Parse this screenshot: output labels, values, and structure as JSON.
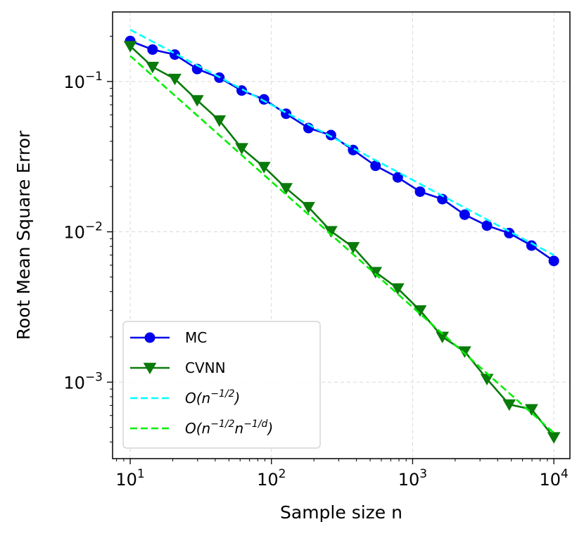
{
  "chart_data": {
    "type": "line",
    "title": "",
    "xlabel": "Sample size n",
    "ylabel": "Root Mean Square Error",
    "xscale": "log",
    "yscale": "log",
    "xlim": [
      7.5,
      13000
    ],
    "ylim": [
      0.00031,
      0.29
    ],
    "grid": true,
    "legend_position": "lower-left",
    "x_ticks": [
      {
        "value": 10,
        "base": "10",
        "exp": "1"
      },
      {
        "value": 100,
        "base": "10",
        "exp": "2"
      },
      {
        "value": 1000,
        "base": "10",
        "exp": "3"
      },
      {
        "value": 10000,
        "base": "10",
        "exp": "4"
      }
    ],
    "y_ticks": [
      {
        "value": 0.001,
        "base": "10",
        "exp": "−3"
      },
      {
        "value": 0.01,
        "base": "10",
        "exp": "−2"
      },
      {
        "value": 0.1,
        "base": "10",
        "exp": "−1"
      }
    ],
    "series": [
      {
        "name": "MC",
        "color": "#0000ee",
        "marker": "circle",
        "style": "solid",
        "x": [
          10,
          14.4,
          20.7,
          29.8,
          42.8,
          61.6,
          88.6,
          127,
          183,
          264,
          379,
          546,
          785,
          1129,
          1624,
          2336,
          3360,
          4833,
          6952,
          10000
        ],
        "y": [
          0.186,
          0.163,
          0.151,
          0.121,
          0.106,
          0.087,
          0.076,
          0.061,
          0.049,
          0.044,
          0.035,
          0.0275,
          0.023,
          0.0185,
          0.0165,
          0.013,
          0.011,
          0.0098,
          0.0081,
          0.0064
        ]
      },
      {
        "name": "CVNN",
        "color": "#0a7a0a",
        "marker": "triangle-down",
        "style": "solid",
        "x": [
          10,
          14.4,
          20.7,
          29.8,
          42.8,
          61.6,
          88.6,
          127,
          183,
          264,
          379,
          546,
          785,
          1129,
          1624,
          2336,
          3360,
          4833,
          6952,
          10000
        ],
        "y": [
          0.172,
          0.125,
          0.104,
          0.075,
          0.055,
          0.036,
          0.027,
          0.0195,
          0.0146,
          0.0101,
          0.0079,
          0.0054,
          0.0042,
          0.003,
          0.002,
          0.0016,
          0.00105,
          0.00071,
          0.00066,
          0.00043
        ]
      },
      {
        "name": "O(n^{-1/2})",
        "color": "#00ffff",
        "marker": "none",
        "style": "dashed",
        "x": [
          10,
          10000
        ],
        "y": [
          0.221,
          0.007
        ]
      },
      {
        "name": "O(n^{-1/2}n^{-1/d})",
        "color": "#00ee00",
        "marker": "none",
        "style": "dashed",
        "x": [
          10,
          10000
        ],
        "y": [
          0.148,
          0.00046
        ]
      }
    ]
  },
  "legend": [
    {
      "key": "mc",
      "label": "MC",
      "color": "#0000ee",
      "marker": "circle",
      "style": "solid"
    },
    {
      "key": "cvnn",
      "label": "CVNN",
      "color": "#0a7a0a",
      "marker": "triangle-down",
      "style": "solid"
    },
    {
      "key": "ref-half",
      "label_pre": "O(n",
      "sup1": "−1/2",
      "label_mid": "",
      "sup2": "",
      "label_post": ")",
      "color": "#00ffff",
      "style": "dashed"
    },
    {
      "key": "ref-d",
      "label_pre": "O(n",
      "sup1": "−1/2",
      "label_mid": "n",
      "sup2": "−1/d",
      "label_post": ")",
      "color": "#00ee00",
      "style": "dashed"
    }
  ]
}
